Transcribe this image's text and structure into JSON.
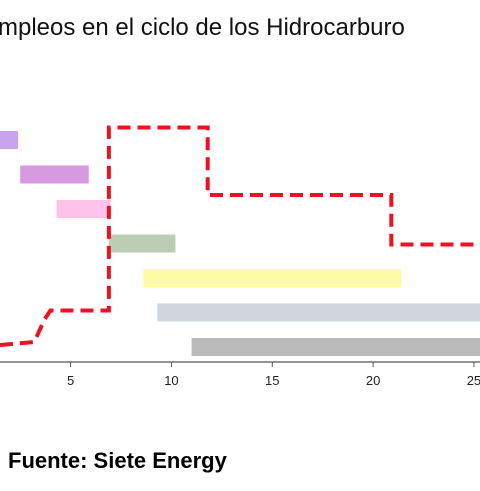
{
  "chart_data": {
    "type": "bar",
    "title": "mpleos en el ciclo de los Hidrocarburo",
    "source": "Fuente: Siete Energy",
    "x_ticks": [
      5,
      10,
      15,
      20,
      25
    ],
    "x_tick_labels": [
      "5",
      "10",
      "15",
      "20",
      "25"
    ],
    "xlim": [
      1.5,
      25.3
    ],
    "bars": [
      {
        "start": 1.5,
        "end": 2.4,
        "color": "#c9a2f0"
      },
      {
        "start": 2.5,
        "end": 5.9,
        "color": "#d79ae0"
      },
      {
        "start": 4.3,
        "end": 7.0,
        "color": "#ffc2ea"
      },
      {
        "start": 6.9,
        "end": 10.2,
        "color": "#bccdb4"
      },
      {
        "start": 8.6,
        "end": 21.4,
        "color": "#fdfca6"
      },
      {
        "start": 9.3,
        "end": 25.3,
        "color": "#d1d6df"
      },
      {
        "start": 11.0,
        "end": 25.3,
        "color": "#bbbbbb"
      }
    ],
    "line": {
      "color": "#ee1122",
      "style": "dashed",
      "points": [
        [
          1.5,
          0.0
        ],
        [
          3.2,
          0.1
        ],
        [
          3.7,
          0.85
        ],
        [
          4.0,
          1.15
        ],
        [
          5.9,
          1.15
        ],
        [
          6.9,
          1.15
        ],
        [
          6.9,
          7.25
        ],
        [
          11.8,
          7.25
        ],
        [
          11.8,
          5.0
        ],
        [
          20.9,
          5.0
        ],
        [
          20.9,
          3.35
        ],
        [
          25.3,
          3.35
        ]
      ]
    },
    "grid": false
  }
}
